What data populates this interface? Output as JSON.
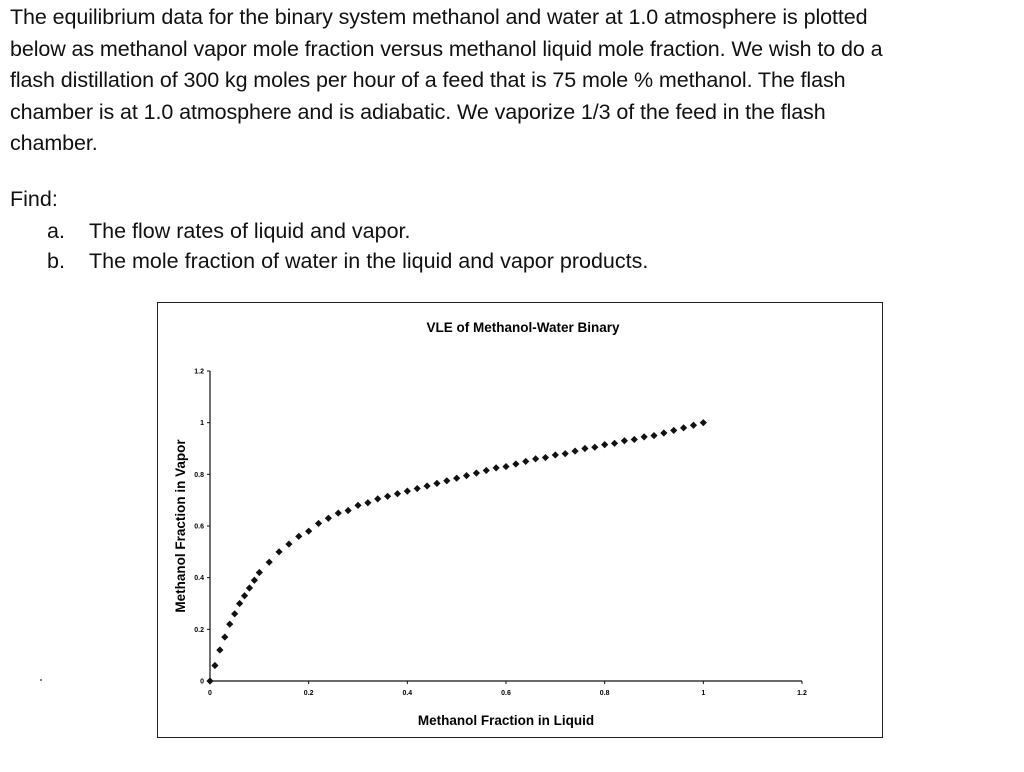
{
  "problem": {
    "lines": [
      "The equilibrium data for the binary system methanol and water at 1.0 atmosphere is plotted",
      "below as methanol vapor mole fraction versus methanol liquid mole fraction.  We wish to do a",
      "flash distillation of 300 kg moles per hour of a feed that is 75 mole % methanol.  The flash",
      "chamber is at 1.0 atmosphere and is adiabatic.  We vaporize 1/3 of the feed in the flash",
      "chamber."
    ]
  },
  "find": {
    "label": "Find:",
    "items": [
      {
        "marker": "a.",
        "text": "The flow rates of liquid and vapor."
      },
      {
        "marker": "b.",
        "text": "The mole fraction of water in the liquid and vapor products."
      }
    ]
  },
  "chart_data": {
    "type": "scatter",
    "title": "VLE of Methanol-Water Binary",
    "xlabel": "Methanol Fraction in Liquid",
    "ylabel": "Methanol Fraction in Vapor",
    "xlim": [
      0,
      1.2
    ],
    "ylim": [
      0,
      1.2
    ],
    "x_ticks": [
      "0",
      "0.2",
      "0.4",
      "0.6",
      "0.8",
      "1",
      "1.2"
    ],
    "y_ticks": [
      "0",
      "0.2",
      "0.4",
      "0.6",
      "0.8",
      "1",
      "1.2"
    ],
    "grid": false,
    "legend": "none",
    "marker_color": "#111111",
    "series": [
      {
        "x": [
          0.0,
          0.01,
          0.02,
          0.03,
          0.04,
          0.05,
          0.06,
          0.07,
          0.08,
          0.09,
          0.1,
          0.12,
          0.14,
          0.16,
          0.18,
          0.2,
          0.22,
          0.24,
          0.26,
          0.28,
          0.3,
          0.32,
          0.34,
          0.36,
          0.38,
          0.4,
          0.42,
          0.44,
          0.46,
          0.48,
          0.5,
          0.52,
          0.54,
          0.56,
          0.58,
          0.6,
          0.62,
          0.64,
          0.66,
          0.68,
          0.7,
          0.72,
          0.74,
          0.76,
          0.78,
          0.8,
          0.82,
          0.84,
          0.86,
          0.88,
          0.9,
          0.92,
          0.94,
          0.96,
          0.98,
          1.0
        ],
        "y": [
          0.0,
          0.06,
          0.12,
          0.17,
          0.22,
          0.26,
          0.3,
          0.33,
          0.36,
          0.39,
          0.42,
          0.46,
          0.5,
          0.53,
          0.56,
          0.58,
          0.61,
          0.63,
          0.65,
          0.66,
          0.68,
          0.69,
          0.705,
          0.715,
          0.725,
          0.735,
          0.745,
          0.755,
          0.765,
          0.775,
          0.785,
          0.795,
          0.805,
          0.815,
          0.825,
          0.83,
          0.84,
          0.85,
          0.86,
          0.865,
          0.875,
          0.88,
          0.89,
          0.9,
          0.905,
          0.915,
          0.92,
          0.93,
          0.935,
          0.945,
          0.95,
          0.96,
          0.97,
          0.98,
          0.99,
          1.0
        ]
      }
    ]
  }
}
